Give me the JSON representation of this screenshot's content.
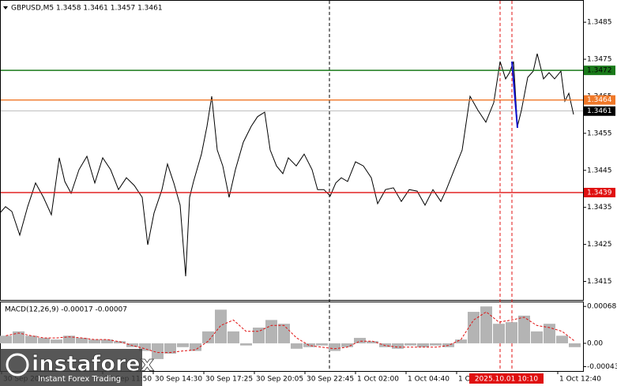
{
  "chart_data": [
    {
      "type": "line",
      "title": "GBPUSD,M5  1.3458 1.3461 1.3457 1.3461",
      "color": "#000000",
      "x": [
        0,
        3.5,
        7.5,
        12.5,
        17.5,
        22.5,
        27.5,
        32.5,
        37.5,
        41,
        45,
        50,
        55,
        60,
        65,
        70,
        75,
        80,
        85,
        90,
        93.5,
        97.5,
        102.5,
        106,
        110,
        114,
        117.5,
        120,
        122.5,
        127.5,
        131,
        134,
        137.5,
        141,
        145,
        149,
        154,
        159,
        163,
        167.5,
        171,
        175,
        179,
        182.5,
        187.5,
        192.5,
        197.5,
        201,
        205,
        209,
        212.5,
        216,
        220,
        225,
        230,
        235,
        239,
        244,
        249,
        254,
        259,
        264,
        269,
        274,
        279,
        282.5,
        287.5,
        292.5,
        297.5,
        302.5,
        307.5,
        312.5,
        316.5,
        320,
        322.5,
        325,
        327.5,
        330,
        334,
        337.5,
        340,
        344,
        347.5,
        351,
        355,
        357.5,
        360,
        363
      ],
      "values": [
        1.34335,
        1.34352,
        1.34339,
        1.34275,
        1.34352,
        1.34416,
        1.34377,
        1.3433,
        1.34484,
        1.3442,
        1.34388,
        1.34452,
        1.34488,
        1.34416,
        1.34484,
        1.34452,
        1.34398,
        1.3443,
        1.34409,
        1.34377,
        1.34249,
        1.34335,
        1.34398,
        1.34467,
        1.34416,
        1.34356,
        1.34164,
        1.34377,
        1.3442,
        1.34494,
        1.34569,
        1.3465,
        1.34505,
        1.34462,
        1.34377,
        1.34452,
        1.34526,
        1.34569,
        1.34595,
        1.34607,
        1.34505,
        1.34462,
        1.34441,
        1.34484,
        1.34462,
        1.34494,
        1.34452,
        1.34398,
        1.34398,
        1.34381,
        1.34416,
        1.3443,
        1.3442,
        1.34473,
        1.34462,
        1.3443,
        1.3436,
        1.34398,
        1.34403,
        1.34366,
        1.34398,
        1.34394,
        1.34356,
        1.34398,
        1.34366,
        1.34398,
        1.34452,
        1.34505,
        1.3465,
        1.34612,
        1.3458,
        1.34633,
        1.34744,
        1.34697,
        1.34714,
        1.34744,
        1.34569,
        1.34612,
        1.34701,
        1.34718,
        1.34765,
        1.34697,
        1.34714,
        1.34697,
        1.34718,
        1.34637,
        1.34658,
        1.34601
      ],
      "xlim": [
        0,
        369
      ],
      "ylim": [
        1.341,
        1.3491
      ],
      "yticks": [
        1.3415,
        1.3425,
        1.3435,
        1.3445,
        1.3455,
        1.3465,
        1.3475,
        1.3485
      ],
      "xticks": [
        {
          "value": 1,
          "label": "30 Sep 2025"
        },
        {
          "value": 65,
          "label": "30 Sep 11:50"
        },
        {
          "value": 97,
          "label": "30 Sep 14:30"
        },
        {
          "value": 129,
          "label": "30 Sep 17:25"
        },
        {
          "value": 161,
          "label": "30 Sep 20:05"
        },
        {
          "value": 193,
          "label": "30 Sep 22:45"
        },
        {
          "value": 225,
          "label": "1 Oct 02:00"
        },
        {
          "value": 257,
          "label": "1 Oct 04:40"
        },
        {
          "value": 289,
          "label": "1 Oct 07:20"
        },
        {
          "value": 353,
          "label": "1 Oct 12:40"
        }
      ],
      "levels": [
        {
          "value": 1.3472,
          "color": "#1a7a1a",
          "text_color": "#000000"
        },
        {
          "value": 1.3464,
          "color": "#f07828",
          "text_color": "#ffffff"
        },
        {
          "value": 1.3439,
          "color": "#e01010",
          "text_color": "#ffffff"
        },
        {
          "value": 1.3461,
          "color": "#000000",
          "text_color": "#ffffff"
        }
      ],
      "vlines": [
        {
          "x": 208.5,
          "color": "#000000"
        },
        {
          "x": 316.5,
          "color": "#e01010"
        },
        {
          "x": 324,
          "color": "#e01010",
          "label": "2025.10.01 10:10"
        }
      ]
    },
    {
      "type": "macd",
      "label": "MACD(12,26,9) -0.00017 -0.00007",
      "color": "#b4b4b4",
      "signal_color": "#e01010",
      "x": [
        0,
        8,
        16,
        24,
        32,
        40,
        48,
        56,
        64,
        72,
        80,
        88,
        96,
        104,
        112,
        120,
        128,
        136,
        144,
        152,
        160,
        168,
        176,
        184,
        192,
        200,
        208,
        216,
        224,
        232,
        240,
        248,
        256,
        264,
        272,
        280,
        288,
        296,
        304,
        312,
        320,
        328,
        336,
        344,
        352,
        360
      ],
      "histogram": [
        0.00014,
        0.00022,
        0.00014,
        0.0001,
        7e-05,
        0.00014,
        0.0001,
        7e-05,
        7e-05,
        4e-05,
        -7e-05,
        -0.00014,
        -0.00029,
        -0.00019,
        -7e-05,
        -0.00014,
        0.00022,
        0.00062,
        0.00022,
        -4e-05,
        0.00029,
        0.00043,
        0.00036,
        -0.0001,
        -7e-05,
        -4e-05,
        -0.00014,
        -7e-05,
        0.0001,
        4e-05,
        -7e-05,
        -0.0001,
        -4e-05,
        -7e-05,
        -4e-05,
        -7e-05,
        7e-05,
        0.00058,
        0.00068,
        0.00036,
        0.00039,
        0.00051,
        0.00022,
        0.00036,
        0.00014,
        -7e-05
      ],
      "signal": [
        0.00014,
        0.00019,
        0.00014,
        0.0001,
        0.0001,
        0.00012,
        0.0001,
        7e-05,
        7e-05,
        3e-05,
        -4e-05,
        -0.0001,
        -0.00017,
        -0.00017,
        -0.00014,
        -0.00012,
        4e-05,
        0.00033,
        0.00043,
        0.00022,
        0.00022,
        0.00033,
        0.00033,
        0.0001,
        -4e-05,
        -7e-05,
        -0.0001,
        -7e-05,
        4e-05,
        4e-05,
        -4e-05,
        -7e-05,
        -7e-05,
        -7e-05,
        -7e-05,
        -4e-05,
        7e-05,
        0.00043,
        0.00058,
        0.00039,
        0.00043,
        0.00048,
        0.00033,
        0.00029,
        0.00022,
        4e-05
      ],
      "xlim": [
        0,
        369
      ],
      "ylim": [
        -0.00051,
        0.00077
      ],
      "yticks": [
        -0.00043,
        {
          "value": 0,
          "label": "0.00"
        },
        0.00068
      ]
    }
  ],
  "watermark": {
    "brand": "instaforex",
    "tagline": "Instant Forex Trading"
  }
}
